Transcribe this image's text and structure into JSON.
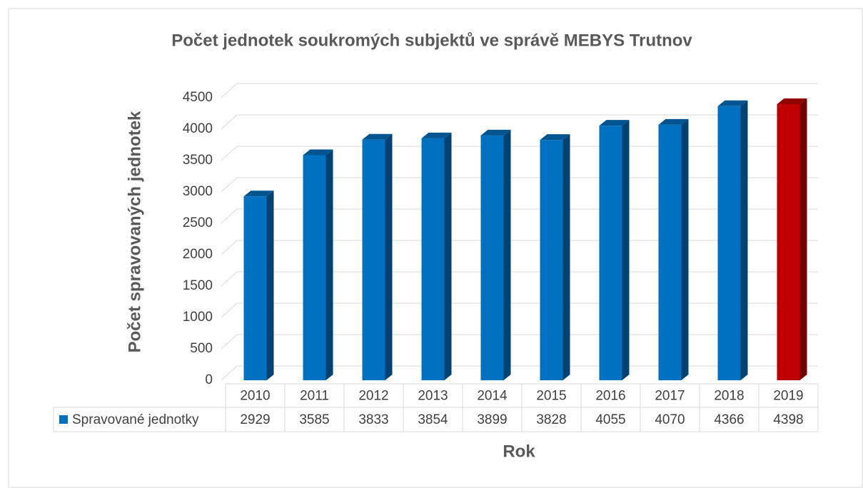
{
  "chart_data": {
    "type": "bar3d",
    "title": "Počet jednotek soukromých subjektů ve správě MEBYS Trutnov",
    "y_label": "Počet spravovaných jednotek",
    "x_label": "Rok",
    "categories": [
      "2010",
      "2011",
      "2012",
      "2013",
      "2014",
      "2015",
      "2016",
      "2017",
      "2018",
      "2019"
    ],
    "series": [
      {
        "name": "Spravované jednotky",
        "color": "#0070c0",
        "colors": [
          "#0070c0",
          "#0070c0",
          "#0070c0",
          "#0070c0",
          "#0070c0",
          "#0070c0",
          "#0070c0",
          "#0070c0",
          "#0070c0",
          "#c00000"
        ],
        "values": [
          2929,
          3585,
          3833,
          3854,
          3899,
          3828,
          4055,
          4070,
          4366,
          4398
        ]
      }
    ],
    "ylim": [
      0,
      4500
    ],
    "yticks": [
      0,
      500,
      1000,
      1500,
      2000,
      2500,
      3000,
      3500,
      4000,
      4500
    ],
    "grid": true,
    "data_table": true
  }
}
